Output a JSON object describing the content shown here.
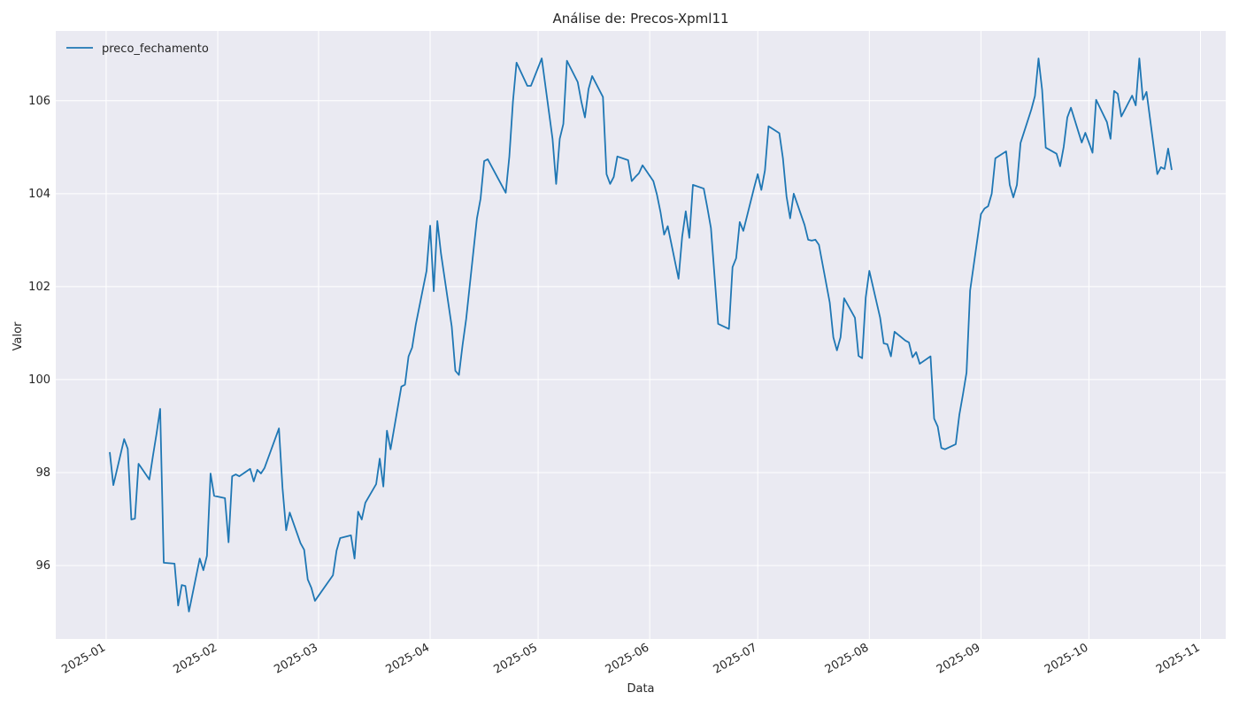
{
  "chart_data": {
    "type": "line",
    "title": "Análise de: Precos-Xpml11",
    "xlabel": "Data",
    "ylabel": "Valor",
    "legend": "upper left",
    "grid": true,
    "xlim": [
      "2024-12-18",
      "2025-11-08"
    ],
    "ylim": [
      94.42,
      107.5
    ],
    "xticks": [
      {
        "value": "2025-01-01",
        "label": "2025-01"
      },
      {
        "value": "2025-02-01",
        "label": "2025-02"
      },
      {
        "value": "2025-03-01",
        "label": "2025-03"
      },
      {
        "value": "2025-04-01",
        "label": "2025-04"
      },
      {
        "value": "2025-05-01",
        "label": "2025-05"
      },
      {
        "value": "2025-06-01",
        "label": "2025-06"
      },
      {
        "value": "2025-07-01",
        "label": "2025-07"
      },
      {
        "value": "2025-08-01",
        "label": "2025-08"
      },
      {
        "value": "2025-09-01",
        "label": "2025-09"
      },
      {
        "value": "2025-10-01",
        "label": "2025-10"
      },
      {
        "value": "2025-11-01",
        "label": "2025-11"
      }
    ],
    "yticks": [
      96,
      98,
      100,
      102,
      104,
      106
    ],
    "x": [
      "2025-01-02",
      "2025-01-03",
      "2025-01-06",
      "2025-01-07",
      "2025-01-08",
      "2025-01-09",
      "2025-01-10",
      "2025-01-13",
      "2025-01-14",
      "2025-01-15",
      "2025-01-16",
      "2025-01-17",
      "2025-01-20",
      "2025-01-21",
      "2025-01-22",
      "2025-01-23",
      "2025-01-24",
      "2025-01-27",
      "2025-01-28",
      "2025-01-29",
      "2025-01-30",
      "2025-01-31",
      "2025-02-03",
      "2025-02-04",
      "2025-02-05",
      "2025-02-06",
      "2025-02-07",
      "2025-02-10",
      "2025-02-11",
      "2025-02-12",
      "2025-02-13",
      "2025-02-14",
      "2025-02-18",
      "2025-02-19",
      "2025-02-20",
      "2025-02-21",
      "2025-02-24",
      "2025-02-25",
      "2025-02-26",
      "2025-02-27",
      "2025-02-28",
      "2025-03-05",
      "2025-03-06",
      "2025-03-07",
      "2025-03-10",
      "2025-03-11",
      "2025-03-12",
      "2025-03-13",
      "2025-03-14",
      "2025-03-17",
      "2025-03-18",
      "2025-03-19",
      "2025-03-20",
      "2025-03-21",
      "2025-03-24",
      "2025-03-25",
      "2025-03-26",
      "2025-03-27",
      "2025-03-28",
      "2025-03-31",
      "2025-04-01",
      "2025-04-02",
      "2025-04-03",
      "2025-04-04",
      "2025-04-07",
      "2025-04-08",
      "2025-04-09",
      "2025-04-10",
      "2025-04-11",
      "2025-04-14",
      "2025-04-15",
      "2025-04-16",
      "2025-04-17",
      "2025-04-22",
      "2025-04-23",
      "2025-04-24",
      "2025-04-25",
      "2025-04-28",
      "2025-04-29",
      "2025-05-02",
      "2025-05-05",
      "2025-05-06",
      "2025-05-07",
      "2025-05-08",
      "2025-05-09",
      "2025-05-12",
      "2025-05-13",
      "2025-05-14",
      "2025-05-15",
      "2025-05-16",
      "2025-05-19",
      "2025-05-20",
      "2025-05-21",
      "2025-05-22",
      "2025-05-23",
      "2025-05-26",
      "2025-05-27",
      "2025-05-28",
      "2025-05-29",
      "2025-05-30",
      "2025-06-02",
      "2025-06-03",
      "2025-06-04",
      "2025-06-05",
      "2025-06-06",
      "2025-06-09",
      "2025-06-10",
      "2025-06-11",
      "2025-06-12",
      "2025-06-13",
      "2025-06-16",
      "2025-06-17",
      "2025-06-18",
      "2025-06-20",
      "2025-06-23",
      "2025-06-24",
      "2025-06-25",
      "2025-06-26",
      "2025-06-27",
      "2025-06-30",
      "2025-07-01",
      "2025-07-02",
      "2025-07-03",
      "2025-07-04",
      "2025-07-07",
      "2025-07-08",
      "2025-07-09",
      "2025-07-10",
      "2025-07-11",
      "2025-07-14",
      "2025-07-15",
      "2025-07-16",
      "2025-07-17",
      "2025-07-18",
      "2025-07-21",
      "2025-07-22",
      "2025-07-23",
      "2025-07-24",
      "2025-07-25",
      "2025-07-28",
      "2025-07-29",
      "2025-07-30",
      "2025-07-31",
      "2025-08-01",
      "2025-08-04",
      "2025-08-05",
      "2025-08-06",
      "2025-08-07",
      "2025-08-08",
      "2025-08-11",
      "2025-08-12",
      "2025-08-13",
      "2025-08-14",
      "2025-08-15",
      "2025-08-18",
      "2025-08-19",
      "2025-08-20",
      "2025-08-21",
      "2025-08-22",
      "2025-08-25",
      "2025-08-26",
      "2025-08-27",
      "2025-08-28",
      "2025-08-29",
      "2025-09-01",
      "2025-09-02",
      "2025-09-03",
      "2025-09-04",
      "2025-09-05",
      "2025-09-08",
      "2025-09-09",
      "2025-09-10",
      "2025-09-11",
      "2025-09-12",
      "2025-09-15",
      "2025-09-16",
      "2025-09-17",
      "2025-09-18",
      "2025-09-19",
      "2025-09-22",
      "2025-09-23",
      "2025-09-24",
      "2025-09-25",
      "2025-09-26",
      "2025-09-29",
      "2025-09-30",
      "2025-10-01",
      "2025-10-02",
      "2025-10-03",
      "2025-10-06",
      "2025-10-07",
      "2025-10-08",
      "2025-10-09",
      "2025-10-10",
      "2025-10-13",
      "2025-10-14",
      "2025-10-15",
      "2025-10-16",
      "2025-10-17",
      "2025-10-20",
      "2025-10-21",
      "2025-10-22",
      "2025-10-23",
      "2025-10-24"
    ],
    "series": [
      {
        "name": "preco_fechamento",
        "color": "#1f77b4",
        "values": [
          98.44,
          97.73,
          98.72,
          98.51,
          96.99,
          97.01,
          98.19,
          97.85,
          98.36,
          98.84,
          99.37,
          96.06,
          96.04,
          95.14,
          95.58,
          95.56,
          95.01,
          96.15,
          95.9,
          96.21,
          97.98,
          97.5,
          97.45,
          96.5,
          97.92,
          97.96,
          97.92,
          98.08,
          97.81,
          98.06,
          97.98,
          98.1,
          98.95,
          97.66,
          96.76,
          97.14,
          96.48,
          96.34,
          95.7,
          95.52,
          95.24,
          95.79,
          96.32,
          96.59,
          96.65,
          96.15,
          97.16,
          96.99,
          97.35,
          97.75,
          98.3,
          97.7,
          98.9,
          98.5,
          99.85,
          99.89,
          100.5,
          100.69,
          101.18,
          102.34,
          103.31,
          101.9,
          103.41,
          102.72,
          101.14,
          100.19,
          100.1,
          100.74,
          101.3,
          103.47,
          103.89,
          104.7,
          104.74,
          104.02,
          104.8,
          105.98,
          106.82,
          106.32,
          106.32,
          106.91,
          105.18,
          104.21,
          105.18,
          105.5,
          106.86,
          106.4,
          105.98,
          105.64,
          106.25,
          106.53,
          106.08,
          104.42,
          104.21,
          104.36,
          104.8,
          104.72,
          104.27,
          104.36,
          104.44,
          104.61,
          104.27,
          103.98,
          103.6,
          103.12,
          103.3,
          102.17,
          103.07,
          103.62,
          103.05,
          104.19,
          104.11,
          103.7,
          103.26,
          101.2,
          101.09,
          102.42,
          102.61,
          103.39,
          103.2,
          104.13,
          104.42,
          104.08,
          104.5,
          105.45,
          105.3,
          104.76,
          103.94,
          103.47,
          104.0,
          103.33,
          103.01,
          102.99,
          103.01,
          102.9,
          101.66,
          100.91,
          100.63,
          100.91,
          101.75,
          101.33,
          100.51,
          100.46,
          101.77,
          102.34,
          101.33,
          100.78,
          100.76,
          100.5,
          101.03,
          100.84,
          100.8,
          100.48,
          100.59,
          100.34,
          100.5,
          99.16,
          98.99,
          98.53,
          98.5,
          98.61,
          99.24,
          99.68,
          100.15,
          101.92,
          103.56,
          103.68,
          103.73,
          104.0,
          104.76,
          104.91,
          104.19,
          103.92,
          104.19,
          105.09,
          105.81,
          106.1,
          106.91,
          106.23,
          104.99,
          104.86,
          104.59,
          105.01,
          105.64,
          105.85,
          105.1,
          105.31,
          105.1,
          104.88,
          106.02,
          105.54,
          105.18,
          106.21,
          106.15,
          105.66,
          106.11,
          105.9,
          106.91,
          106.02,
          106.19,
          104.42,
          104.57,
          104.53,
          104.97,
          104.51
        ]
      }
    ]
  }
}
